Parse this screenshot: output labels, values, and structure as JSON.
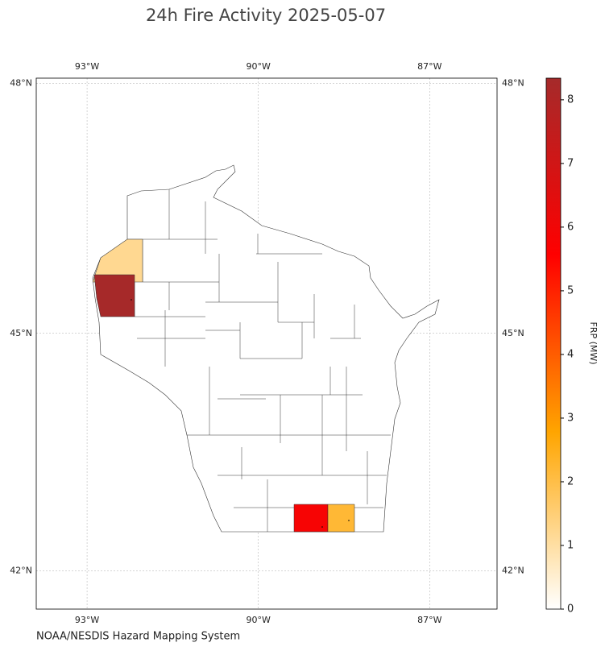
{
  "title": "24h Fire Activity 2025-05-07",
  "source": "NOAA/NESDIS Hazard Mapping System",
  "map": {
    "xlim": [
      -93.89,
      -85.82
    ],
    "ylim": [
      41.5,
      48.06
    ],
    "xticks": [
      {
        "value": -93,
        "label": "93°W"
      },
      {
        "value": -90,
        "label": "90°W"
      },
      {
        "value": -87,
        "label": "87°W"
      }
    ],
    "yticks": [
      {
        "value": 42,
        "label": "42°N"
      },
      {
        "value": 45,
        "label": "45°N"
      },
      {
        "value": 48,
        "label": "48°N"
      }
    ],
    "grid": true
  },
  "fires": {
    "values": [
      1.2,
      8.3,
      5.8,
      2.2
    ]
  },
  "colorbar": {
    "label": "FRP (MW)",
    "ylim": [
      0,
      8.34
    ],
    "yticks": [
      0,
      1,
      2,
      3,
      4,
      5,
      6,
      7,
      8
    ],
    "colors": [
      "#ffffff",
      "#ffa500",
      "#ff0000",
      "#a52a2a"
    ]
  }
}
